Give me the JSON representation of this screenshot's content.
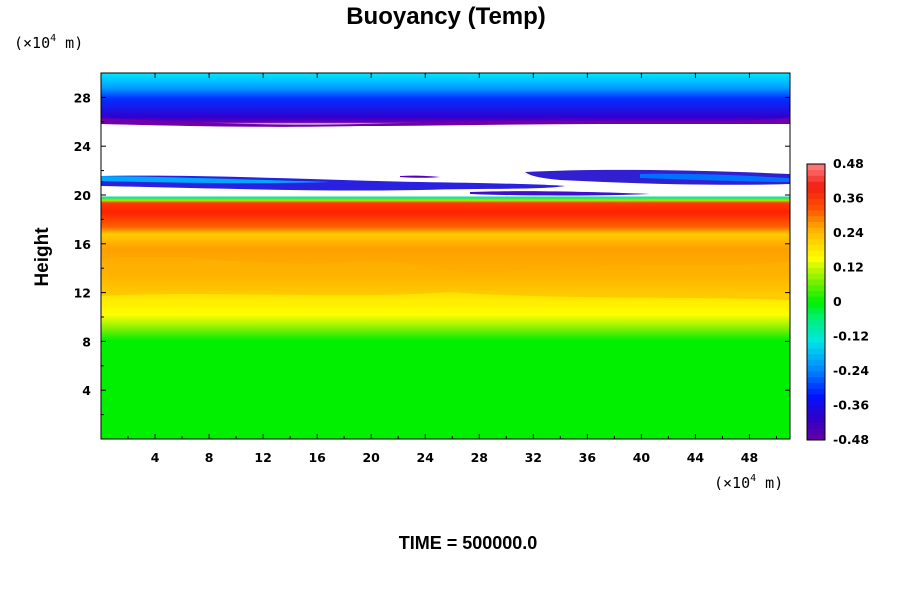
{
  "chart_data": {
    "type": "heatmap",
    "title": "Buoyancy (Temp)",
    "ylabel": "Height",
    "x_unit": "(×10⁴ m)",
    "y_unit": "(×10⁴ m)",
    "xlim": [
      0,
      51
    ],
    "ylim": [
      0,
      30
    ],
    "x_ticks": [
      "4",
      "8",
      "12",
      "16",
      "20",
      "24",
      "28",
      "32",
      "36",
      "40",
      "44",
      "48"
    ],
    "y_ticks": [
      "4",
      "8",
      "12",
      "16",
      "20",
      "24",
      "28"
    ],
    "colorbar": {
      "min": -0.48,
      "max": 0.48,
      "step": 0.02,
      "tick_labels": [
        "0.48",
        "0.36",
        "0.24",
        "0.12",
        "0",
        "-0.12",
        "-0.24",
        "-0.36",
        "-0.48"
      ],
      "colormap": "rainbow"
    },
    "bands": [
      {
        "y0": 0,
        "y1": 8.5,
        "value": 0.0,
        "note": "near-zero buoyancy"
      },
      {
        "y0": 8.5,
        "y1": 11,
        "value": 0.1
      },
      {
        "y0": 11,
        "y1": 13,
        "value": 0.2
      },
      {
        "y0": 13,
        "y1": 16,
        "value": 0.26
      },
      {
        "y0": 16,
        "y1": 17.5,
        "value": 0.3
      },
      {
        "y0": 17.5,
        "y1": 19,
        "value": 0.38
      },
      {
        "y0": 19,
        "y1": 19.6,
        "value": 0.3
      },
      {
        "y0": 19.6,
        "y1": 20,
        "value": 0.0
      },
      {
        "y0": 21.5,
        "y1": 22.2,
        "value": -0.38,
        "note": "negative streaks"
      },
      {
        "y0": 26,
        "y1": 26.6,
        "value": -0.44
      },
      {
        "y0": 26.6,
        "y1": 28.5,
        "value": -0.36
      },
      {
        "y0": 28.5,
        "y1": 30,
        "value": -0.2
      }
    ],
    "footer": "TIME = 500000.0"
  }
}
